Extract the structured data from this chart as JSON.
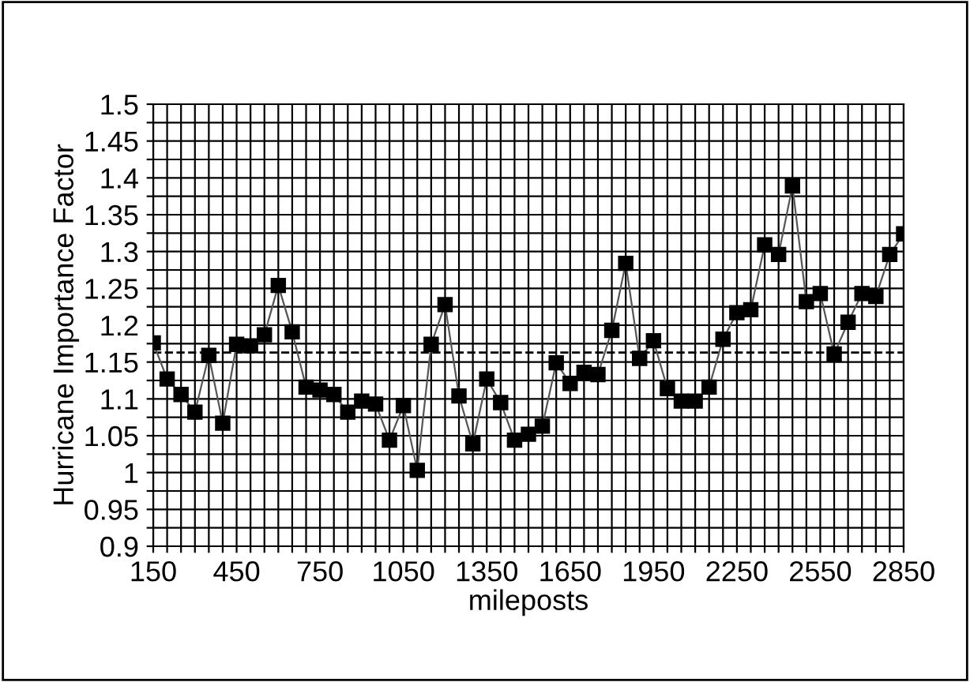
{
  "chart_data": {
    "type": "line",
    "xlabel": "mileposts",
    "ylabel": "Hurricane Importance Factor",
    "x": [
      150,
      200,
      250,
      300,
      350,
      400,
      450,
      500,
      550,
      600,
      650,
      700,
      750,
      800,
      850,
      900,
      950,
      1000,
      1050,
      1100,
      1150,
      1200,
      1250,
      1300,
      1350,
      1400,
      1450,
      1500,
      1550,
      1600,
      1650,
      1700,
      1750,
      1800,
      1850,
      1900,
      1950,
      2000,
      2050,
      2100,
      2150,
      2200,
      2250,
      2300,
      2350,
      2400,
      2450,
      2500,
      2550,
      2600,
      2650,
      2700,
      2750,
      2800,
      2850
    ],
    "series": [
      {
        "color": "#000000",
        "values": [
          1.176,
          1.127,
          1.106,
          1.082,
          1.159,
          1.067,
          1.174,
          1.172,
          1.187,
          1.254,
          1.191,
          1.116,
          1.112,
          1.106,
          1.082,
          1.097,
          1.093,
          1.044,
          1.091,
          1.003,
          1.174,
          1.228,
          1.104,
          1.039,
          1.127,
          1.095,
          1.044,
          1.052,
          1.063,
          1.149,
          1.121,
          1.136,
          1.133,
          1.193,
          1.284,
          1.155,
          1.179,
          1.114,
          1.097,
          1.097,
          1.116,
          1.181,
          1.217,
          1.221,
          1.309,
          1.296,
          1.389,
          1.232,
          1.243,
          1.161,
          1.204,
          1.243,
          1.239,
          1.296,
          1.324
        ]
      }
    ],
    "marker": "square",
    "line_style": "solid",
    "grid": true,
    "legend": false,
    "xlim": [
      150,
      2850
    ],
    "ylim": [
      0.9,
      1.5
    ],
    "xticks": [
      150,
      {
        "value": 200,
        "label": null
      },
      {
        "value": 250,
        "label": null
      },
      {
        "value": 300,
        "label": null
      },
      {
        "value": 350,
        "label": null
      },
      {
        "value": 400,
        "label": null
      },
      450,
      {
        "value": 500,
        "label": null
      },
      {
        "value": 550,
        "label": null
      },
      {
        "value": 600,
        "label": null
      },
      {
        "value": 650,
        "label": null
      },
      {
        "value": 700,
        "label": null
      },
      750,
      {
        "value": 800,
        "label": null
      },
      {
        "value": 850,
        "label": null
      },
      {
        "value": 900,
        "label": null
      },
      {
        "value": 950,
        "label": null
      },
      {
        "value": 1000,
        "label": null
      },
      1050,
      {
        "value": 1100,
        "label": null
      },
      {
        "value": 1150,
        "label": null
      },
      {
        "value": 1200,
        "label": null
      },
      {
        "value": 1250,
        "label": null
      },
      {
        "value": 1300,
        "label": null
      },
      1350,
      {
        "value": 1400,
        "label": null
      },
      {
        "value": 1450,
        "label": null
      },
      {
        "value": 1500,
        "label": null
      },
      {
        "value": 1550,
        "label": null
      },
      {
        "value": 1600,
        "label": null
      },
      1650,
      {
        "value": 1700,
        "label": null
      },
      {
        "value": 1750,
        "label": null
      },
      {
        "value": 1800,
        "label": null
      },
      {
        "value": 1850,
        "label": null
      },
      {
        "value": 1900,
        "label": null
      },
      1950,
      {
        "value": 2000,
        "label": null
      },
      {
        "value": 2050,
        "label": null
      },
      {
        "value": 2100,
        "label": null
      },
      {
        "value": 2150,
        "label": null
      },
      {
        "value": 2200,
        "label": null
      },
      2250,
      {
        "value": 2300,
        "label": null
      },
      {
        "value": 2350,
        "label": null
      },
      {
        "value": 2400,
        "label": null
      },
      {
        "value": 2450,
        "label": null
      },
      {
        "value": 2500,
        "label": null
      },
      2550,
      {
        "value": 2600,
        "label": null
      },
      {
        "value": 2650,
        "label": null
      },
      {
        "value": 2700,
        "label": null
      },
      {
        "value": 2750,
        "label": null
      },
      {
        "value": 2800,
        "label": null
      },
      2850
    ],
    "yticks": [
      0.9,
      {
        "value": 0.925,
        "label": null
      },
      0.95,
      {
        "value": 0.975,
        "label": null
      },
      1,
      {
        "value": 1.025,
        "label": null
      },
      1.05,
      {
        "value": 1.075,
        "label": null
      },
      1.1,
      {
        "value": 1.125,
        "label": null
      },
      1.15,
      {
        "value": 1.175,
        "label": null
      },
      1.2,
      {
        "value": 1.225,
        "label": null
      },
      1.25,
      {
        "value": 1.275,
        "label": null
      },
      1.3,
      {
        "value": 1.325,
        "label": null
      },
      1.35,
      {
        "value": 1.375,
        "label": null
      },
      1.4,
      {
        "value": 1.425,
        "label": null
      },
      1.45,
      {
        "value": 1.475,
        "label": null
      },
      1.5
    ],
    "ref_lines": [
      {
        "axis": "y",
        "value": 1.163,
        "color": "#000000",
        "line_style": "dashed"
      }
    ]
  }
}
